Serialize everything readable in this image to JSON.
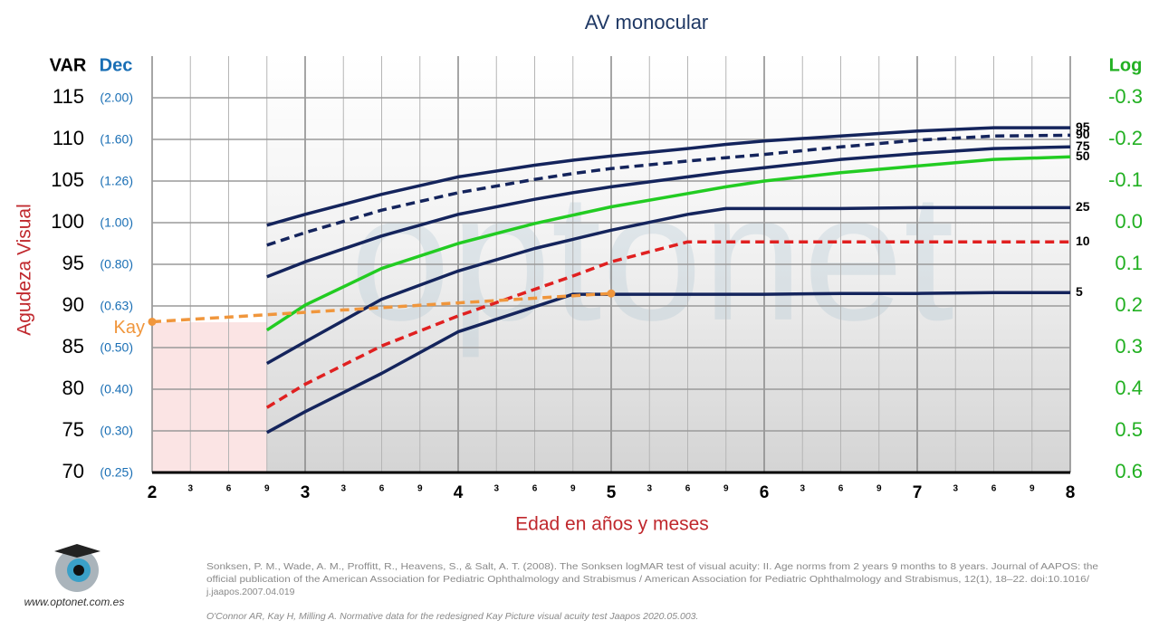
{
  "chart_data": {
    "type": "line",
    "title": "AV monocular",
    "x_label": "Edad en años y meses",
    "y_label": "Agudeza Visual",
    "y_header": "VAR",
    "ydec_header": "Dec",
    "y2_header": "Log",
    "watermark": "optonet",
    "xlim": [
      2,
      8
    ],
    "xticks": [
      2,
      {
        "value": 2.25,
        "label": "3"
      },
      {
        "value": 2.5,
        "label": "6"
      },
      {
        "value": 2.75,
        "label": "9"
      },
      3,
      {
        "value": 3.25,
        "label": "3"
      },
      {
        "value": 3.5,
        "label": "6"
      },
      {
        "value": 3.75,
        "label": "9"
      },
      4,
      {
        "value": 4.25,
        "label": "3"
      },
      {
        "value": 4.5,
        "label": "6"
      },
      {
        "value": 4.75,
        "label": "9"
      },
      5,
      {
        "value": 5.25,
        "label": "3"
      },
      {
        "value": 5.5,
        "label": "6"
      },
      {
        "value": 5.75,
        "label": "9"
      },
      6,
      {
        "value": 6.25,
        "label": "3"
      },
      {
        "value": 6.5,
        "label": "6"
      },
      {
        "value": 6.75,
        "label": "9"
      },
      7,
      {
        "value": 7.25,
        "label": "3"
      },
      {
        "value": 7.5,
        "label": "6"
      },
      {
        "value": 7.75,
        "label": "9"
      },
      8
    ],
    "ylim": [
      70,
      120
    ],
    "yticks": [
      70,
      75,
      80,
      85,
      90,
      95,
      100,
      105,
      110,
      115
    ],
    "ydecticks": [
      {
        "value": 70,
        "label": "(0.25)"
      },
      {
        "value": 75,
        "label": "(0.30)"
      },
      {
        "value": 80,
        "label": "(0.40)"
      },
      {
        "value": 85,
        "label": "(0.50)"
      },
      {
        "value": 90,
        "label": "(0.63)"
      },
      {
        "value": 95,
        "label": "(0.80)"
      },
      {
        "value": 100,
        "label": "(1.00)"
      },
      {
        "value": 105,
        "label": "(1.26)"
      },
      {
        "value": 110,
        "label": "(1.60)"
      },
      {
        "value": 115,
        "label": "(2.00)"
      }
    ],
    "y2lim": [
      0.6,
      -0.4
    ],
    "y2ticks": [
      0.6,
      0.5,
      0.4,
      0.3,
      0.2,
      0.1,
      {
        "value": 0,
        "label": "0.0"
      },
      -0.1,
      -0.2,
      -0.3
    ],
    "grid": true,
    "x": [
      2.75,
      3,
      3.5,
      4,
      4.5,
      4.75,
      5,
      5.5,
      5.75,
      6,
      6.5,
      7,
      7.5,
      8
    ],
    "series": [
      {
        "name": "95",
        "color": "#14245c",
        "dashed": false,
        "label_at": "end",
        "values": [
          99.7,
          101.0,
          103.4,
          105.5,
          106.9,
          107.5,
          108.0,
          108.9,
          109.4,
          109.8,
          110.4,
          111.0,
          111.4,
          111.4
        ]
      },
      {
        "name": "90",
        "color": "#14245c",
        "dashed": true,
        "label_at": "end",
        "values": [
          97.3,
          98.8,
          101.5,
          103.6,
          105.2,
          105.9,
          106.5,
          107.4,
          107.8,
          108.2,
          109.1,
          109.9,
          110.4,
          110.5
        ]
      },
      {
        "name": "75",
        "color": "#14245c",
        "dashed": false,
        "label_at": "end",
        "values": [
          93.5,
          95.3,
          98.4,
          101.0,
          102.8,
          103.6,
          104.3,
          105.5,
          106.1,
          106.6,
          107.6,
          108.3,
          108.9,
          109.1
        ]
      },
      {
        "name": "50",
        "color": "#22cc22",
        "dashed": false,
        "label_at": "end",
        "values": [
          87.1,
          90.1,
          94.5,
          97.5,
          99.9,
          100.9,
          101.9,
          103.5,
          104.3,
          105.0,
          106.0,
          106.8,
          107.6,
          107.9
        ]
      },
      {
        "name": "25",
        "color": "#14245c",
        "dashed": false,
        "label_at": "end",
        "values": [
          83.1,
          85.7,
          90.8,
          94.2,
          96.9,
          98.0,
          99.1,
          101.0,
          101.7,
          101.7,
          101.7,
          101.8,
          101.8,
          101.8
        ]
      },
      {
        "name": "10",
        "color": "#e02020",
        "dashed": true,
        "label_at": "end",
        "values": [
          77.8,
          80.6,
          85.2,
          88.8,
          92.0,
          93.6,
          95.3,
          97.7,
          97.7,
          97.7,
          97.7,
          97.7,
          97.7,
          97.7
        ]
      },
      {
        "name": "5",
        "color": "#14245c",
        "dashed": false,
        "label_at": "end",
        "values": [
          74.8,
          77.3,
          81.9,
          86.9,
          89.9,
          91.4,
          91.4,
          91.4,
          91.4,
          91.4,
          91.5,
          91.5,
          91.6,
          91.6
        ]
      },
      {
        "name": "Kay",
        "color": "#f0963c",
        "dashed": true,
        "label_at": "start",
        "markers": true,
        "x": [
          2,
          5
        ],
        "values": [
          88.1,
          91.5
        ]
      }
    ]
  },
  "footer": {
    "references": [
      "Sonksen, P. M., Wade, A. M., Proffitt, R., Heavens, S., & Salt, A. T. (2008). The Sonksen logMAR test of visual acuity: II. Age norms from 2 years 9 months to 8 years. Journal of AAPOS: the",
      "official publication of the American Association for Pediatric Ophthalmology and Strabismus / American Association for Pediatric Ophthalmology and Strabismus, 12(1), 18–22. doi:10.1016/",
      "j.jaapos.2007.04.019"
    ],
    "reference2": "O'Connor AR, Kay H, Milling A. Normative data for the redesigned Kay Picture visual acuity test Jaapos 2020.05.003.",
    "website": "www.optonet.com.es"
  }
}
